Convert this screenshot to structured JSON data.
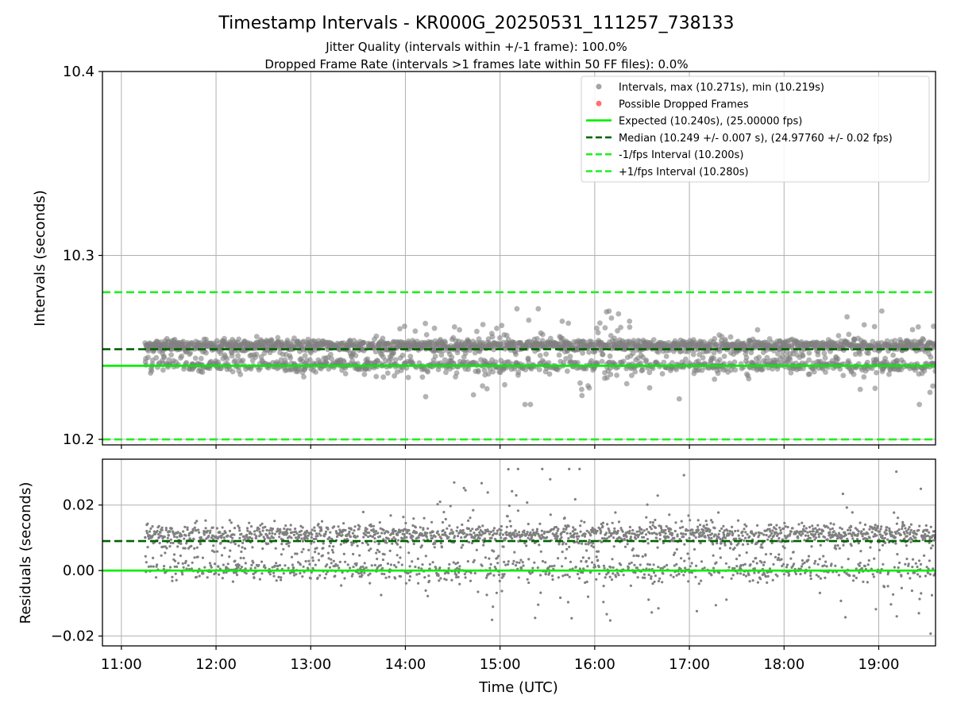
{
  "colors": {
    "points": "#808080",
    "dropped": "#ff4040",
    "expected": "#00ee00",
    "median": "#006400",
    "fps_interval": "#22ee22",
    "grid": "#b0b0b0"
  },
  "chart_data": [
    {
      "type": "scatter",
      "title": "Timestamp Intervals - KR000G_20250531_111257_738133",
      "subtitle_lines": [
        "Jitter Quality (intervals within +/-1 frame): 100.0%",
        "Dropped Frame Rate (intervals >1 frames late within 50 FF files): 0.0%"
      ],
      "xlabel": "",
      "ylabel": "Intervals (seconds)",
      "x_range_hours": [
        10.8,
        19.6
      ],
      "ylim": [
        10.197,
        10.4
      ],
      "y_ticks": [
        "10.2",
        "10.3",
        "10.4"
      ],
      "y_tick_values": [
        10.2,
        10.3,
        10.4
      ],
      "grid": true,
      "legend": {
        "placement": "top-right",
        "entries": [
          {
            "label": "Intervals, max (10.271s), min (10.219s)",
            "kind": "dot",
            "color": "#999999"
          },
          {
            "label": "Possible Dropped Frames",
            "kind": "dot",
            "color": "#ff6060"
          },
          {
            "label": "Expected (10.240s), (25.00000 fps)",
            "kind": "solid",
            "color": "#00ee00"
          },
          {
            "label": "Median (10.249 +/- 0.007 s), (24.97760 +/- 0.02 fps)",
            "kind": "dashed",
            "color": "#006400"
          },
          {
            "label": "-1/fps Interval (10.200s)",
            "kind": "dashed",
            "color": "#22ee22"
          },
          {
            "label": "+1/fps Interval (10.280s)",
            "kind": "dashed",
            "color": "#22ee22"
          }
        ]
      },
      "reference_lines": {
        "expected": 10.24,
        "median": 10.249,
        "minus_fps": 10.2,
        "plus_fps": 10.28
      },
      "series": [
        {
          "name": "Intervals, max (10.271s), min (10.219s)",
          "generated": {
            "start": 11.25,
            "end": 19.6,
            "count": 2600,
            "upper": 10.251,
            "lower": 10.24,
            "spread_min": 0.004,
            "spread_max": 0.012,
            "max": 10.271,
            "min": 10.219
          }
        }
      ]
    },
    {
      "type": "scatter",
      "xlabel": "Time (UTC)",
      "ylabel": "Residuals (seconds)",
      "x_range_hours": [
        10.8,
        19.6
      ],
      "ylim": [
        -0.023,
        0.034
      ],
      "y_ticks": [
        "−0.02",
        "0.00",
        "0.02"
      ],
      "y_tick_values": [
        -0.02,
        0.0,
        0.02
      ],
      "x_ticks": [
        "11:00",
        "12:00",
        "13:00",
        "14:00",
        "15:00",
        "16:00",
        "17:00",
        "18:00",
        "19:00"
      ],
      "x_tick_values": [
        11,
        12,
        13,
        14,
        15,
        16,
        17,
        18,
        19
      ],
      "grid": true,
      "reference_lines": {
        "zero": 0.0,
        "median_offset": 0.009
      },
      "series": [
        {
          "name": "",
          "generated": {
            "start": 11.25,
            "end": 19.6,
            "count": 2600,
            "upper": 0.011,
            "lower": 0.0,
            "spread_min": 0.004,
            "spread_max": 0.012,
            "max": 0.031,
            "min": -0.021
          }
        }
      ]
    }
  ]
}
